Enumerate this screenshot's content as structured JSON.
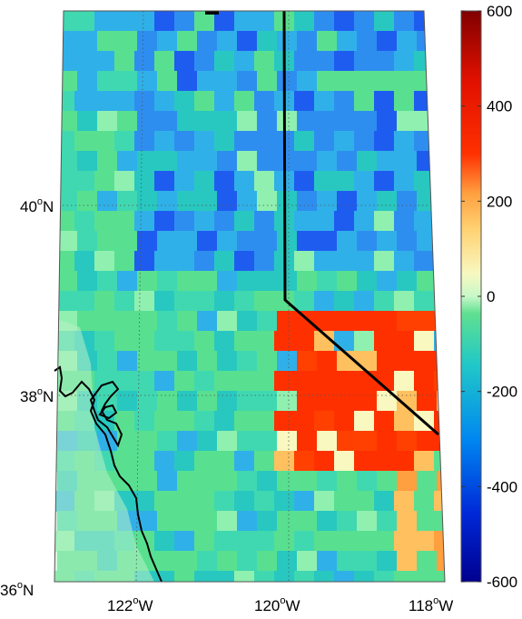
{
  "map": {
    "lat_labels": [
      {
        "value": 40,
        "deg": "40",
        "hemi": "N"
      },
      {
        "value": 38,
        "deg": "38",
        "hemi": "N"
      },
      {
        "value": 36,
        "deg": "36",
        "hemi": "N"
      }
    ],
    "lon_labels": [
      {
        "value": -122,
        "deg": "122",
        "hemi": "W"
      },
      {
        "value": -120,
        "deg": "120",
        "hemi": "W"
      },
      {
        "value": -118,
        "deg": "118",
        "hemi": "W"
      }
    ],
    "graticule": "dotted",
    "features": [
      "coastline",
      "state-border"
    ]
  },
  "colorbar": {
    "ticks": [
      "600",
      "400",
      "200",
      "0",
      "-200",
      "-400",
      "-600"
    ],
    "range": [
      -600,
      600
    ],
    "colormap": [
      "#00008f",
      "#0060ff",
      "#10c0e0",
      "#40e080",
      "#f8f8c0",
      "#ffc060",
      "#ff3000",
      "#800000"
    ]
  }
}
